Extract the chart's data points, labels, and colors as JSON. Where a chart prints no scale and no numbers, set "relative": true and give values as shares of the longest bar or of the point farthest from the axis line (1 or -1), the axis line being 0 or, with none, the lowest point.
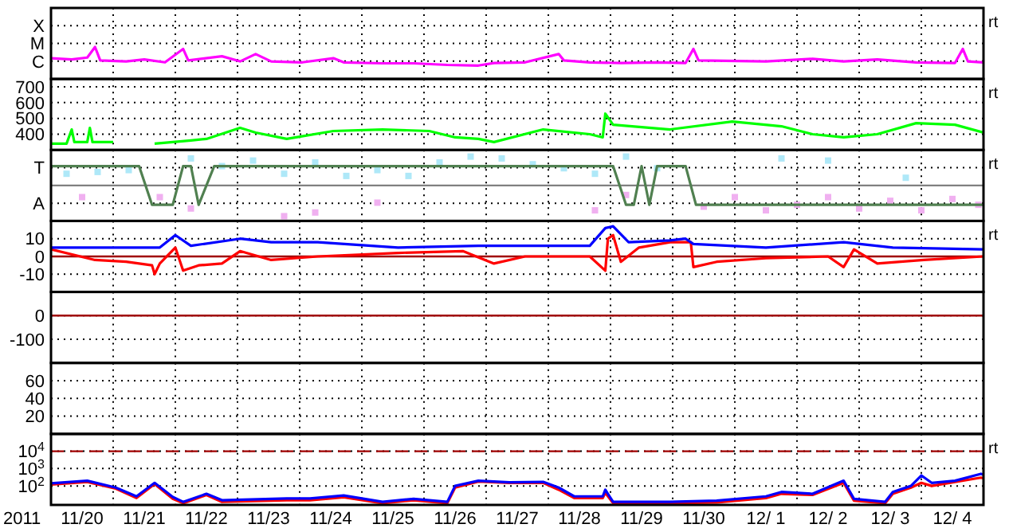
{
  "chart_data": [
    {
      "type": "line",
      "relative": true,
      "y_categories": [
        "X",
        "M",
        "C"
      ],
      "grid": true,
      "tick_labels": "y",
      "xlim": [
        "2011-11-20",
        "2011-12-05"
      ],
      "xticks": [
        {
          "value": "2011-11-21",
          "label": null
        },
        {
          "value": "2011-11-22",
          "label": null
        },
        {
          "value": "2011-11-23",
          "label": null
        },
        {
          "value": "2011-11-24",
          "label": null
        },
        {
          "value": "2011-11-25",
          "label": null
        },
        {
          "value": "2011-11-26",
          "label": null
        },
        {
          "value": "2011-11-27",
          "label": null
        },
        {
          "value": "2011-11-28",
          "label": null
        },
        {
          "value": "2011-11-29",
          "label": null
        },
        {
          "value": "2011-11-30",
          "label": null
        },
        {
          "value": "2011-12-01",
          "label": null
        },
        {
          "value": "2011-12-02",
          "label": null
        },
        {
          "value": "2011-12-03",
          "label": null
        },
        {
          "value": "2011-12-04",
          "label": null
        }
      ],
      "annotations": [
        "rt"
      ],
      "series": [
        {
          "color": "#ff00ff",
          "x": [
            "2011-11-20T00:00",
            "2011-11-20T08:00",
            "2011-11-20T14:00",
            "2011-11-20T17:00",
            "2011-11-20T19:00",
            "2011-11-21T05:00",
            "2011-11-21T12:00",
            "2011-11-21T20:00",
            "2011-11-22T03:00",
            "2011-11-22T05:00",
            "2011-11-22T18:00",
            "2011-11-23T01:00",
            "2011-11-23T07:00",
            "2011-11-23T13:00",
            "2011-11-24T01:00",
            "2011-11-24T13:00",
            "2011-11-24T17:00",
            "2011-11-25T08:00",
            "2011-11-25T20:00",
            "2011-11-26T09:00",
            "2011-11-26T21:00",
            "2011-11-27T03:00",
            "2011-11-27T15:00",
            "2011-11-28T04:00",
            "2011-11-28T06:00",
            "2011-11-28T16:00",
            "2011-11-29T04:00",
            "2011-11-29T18:00",
            "2011-11-30T05:00",
            "2011-11-30T08:00",
            "2011-11-30T10:00",
            "2011-12-01T12:00",
            "2011-12-02T06:00",
            "2011-12-02T18:00",
            "2011-12-03T07:00",
            "2011-12-03T22:00",
            "2011-12-04T13:00",
            "2011-12-04T16:00",
            "2011-12-04T18:00",
            "2011-12-05T00:00"
          ],
          "values": [
            0.65,
            0.61,
            0.67,
            1,
            0.58,
            0.55,
            0.61,
            0.52,
            0.94,
            0.58,
            0.71,
            0.55,
            0.78,
            0.55,
            0.52,
            0.65,
            0.52,
            0.49,
            0.49,
            0.44,
            0.42,
            0.5,
            0.52,
            0.78,
            0.58,
            0.52,
            0.5,
            0.52,
            0.5,
            0.94,
            0.58,
            0.55,
            0.63,
            0.55,
            0.61,
            0.52,
            0.5,
            0.94,
            0.55,
            0.52
          ]
        }
      ]
    },
    {
      "type": "line",
      "grid": true,
      "tick_labels": "y",
      "xlim": [
        "2011-11-20",
        "2011-12-05"
      ],
      "xticks": [
        {
          "value": "2011-11-21",
          "label": null
        },
        {
          "value": "2011-11-22",
          "label": null
        },
        {
          "value": "2011-11-23",
          "label": null
        },
        {
          "value": "2011-11-24",
          "label": null
        },
        {
          "value": "2011-11-25",
          "label": null
        },
        {
          "value": "2011-11-26",
          "label": null
        },
        {
          "value": "2011-11-27",
          "label": null
        },
        {
          "value": "2011-11-28",
          "label": null
        },
        {
          "value": "2011-11-29",
          "label": null
        },
        {
          "value": "2011-11-30",
          "label": null
        },
        {
          "value": "2011-12-01",
          "label": null
        },
        {
          "value": "2011-12-02",
          "label": null
        },
        {
          "value": "2011-12-03",
          "label": null
        },
        {
          "value": "2011-12-04",
          "label": null
        }
      ],
      "ylim": [
        300,
        750
      ],
      "yticks": [
        400,
        500,
        600,
        700
      ],
      "annotations": [
        "rt"
      ],
      "series": [
        {
          "color": "#00ff00",
          "x": [
            "2011-11-20T00:00",
            "2011-11-20T06:00",
            "2011-11-20T08:00",
            "2011-11-20T09:00",
            "2011-11-20T14:00",
            "2011-11-20T15:00",
            "2011-11-20T16:00",
            "2011-11-21T00:00",
            "2011-11-21T08:00",
            "2011-11-21T16:00",
            "2011-11-22T06:00",
            "2011-11-22T12:00",
            "2011-11-23T01:00",
            "2011-11-23T07:00",
            "2011-11-23T19:00",
            "2011-11-24T13:00",
            "2011-11-25T08:00",
            "2011-11-26T02:00",
            "2011-11-26T12:00",
            "2011-11-26T21:00",
            "2011-11-27T03:00",
            "2011-11-27T22:00",
            "2011-11-28T16:00",
            "2011-11-28T21:00",
            "2011-11-28T22:00",
            "2011-11-29T01:00",
            "2011-11-29T23:00",
            "2011-11-30T23:00",
            "2011-12-01T18:00",
            "2011-12-02T06:00",
            "2011-12-02T18:00",
            "2011-12-03T07:00",
            "2011-12-03T22:00",
            "2011-12-04T13:00",
            "2011-12-05T00:00"
          ],
          "values": [
            340,
            340,
            430,
            350,
            350,
            440,
            350,
            350,
            null,
            340,
            360,
            370,
            440,
            410,
            370,
            420,
            430,
            420,
            380,
            370,
            350,
            430,
            400,
            380,
            530,
            460,
            430,
            480,
            450,
            400,
            380,
            400,
            470,
            460,
            410
          ]
        }
      ]
    },
    {
      "type": "line",
      "grid": true,
      "tick_labels": "y",
      "xlim": [
        "2011-11-20",
        "2011-12-05"
      ],
      "xticks": [
        {
          "value": "2011-11-21",
          "label": null
        },
        {
          "value": "2011-11-22",
          "label": null
        },
        {
          "value": "2011-11-23",
          "label": null
        },
        {
          "value": "2011-11-24",
          "label": null
        },
        {
          "value": "2011-11-25",
          "label": null
        },
        {
          "value": "2011-11-26",
          "label": null
        },
        {
          "value": "2011-11-27",
          "label": null
        },
        {
          "value": "2011-11-28",
          "label": null
        },
        {
          "value": "2011-11-29",
          "label": null
        },
        {
          "value": "2011-11-30",
          "label": null
        },
        {
          "value": "2011-12-01",
          "label": null
        },
        {
          "value": "2011-12-02",
          "label": null
        },
        {
          "value": "2011-12-03",
          "label": null
        },
        {
          "value": "2011-12-04",
          "label": null
        }
      ],
      "relative": true,
      "y_categories": [
        "T",
        "A"
      ],
      "annotations": [
        "rt"
      ],
      "ref_lines": [
        {
          "axis": "y",
          "value": 0,
          "color": "#808080"
        }
      ],
      "series": [
        {
          "type": "scatter",
          "marker": "square",
          "color": "#aee8f8",
          "x": [
            "2011-11-20T06:00",
            "2011-11-20T18:00",
            "2011-11-21T06:00",
            "2011-11-22T06:00",
            "2011-11-22T18:00",
            "2011-11-23T06:00",
            "2011-11-23T18:00",
            "2011-11-24T06:00",
            "2011-11-24T18:00",
            "2011-11-25T06:00",
            "2011-11-25T18:00",
            "2011-11-26T06:00",
            "2011-11-26T18:00",
            "2011-11-27T06:00",
            "2011-11-27T18:00",
            "2011-11-28T06:00",
            "2011-11-28T18:00",
            "2011-11-29T06:00",
            "2011-11-29T18:00",
            "2011-12-01T18:00",
            "2011-12-02T12:00",
            "2011-12-03T18:00"
          ],
          "values": [
            0.38,
            0.44,
            0.5,
            0.88,
            0.63,
            0.81,
            0.38,
            0.75,
            0.31,
            0.5,
            0.31,
            0.75,
            0.94,
            0.88,
            0.69,
            0.56,
            0.38,
            0.94,
            0.56,
            0.88,
            0.81,
            0.25
          ]
        },
        {
          "type": "scatter",
          "marker": "square",
          "color": "#f0b0f0",
          "x": [
            "2011-11-20T12:00",
            "2011-11-21T18:00",
            "2011-11-22T06:00",
            "2011-11-23T18:00",
            "2011-11-24T06:00",
            "2011-11-25T06:00",
            "2011-11-28T18:00",
            "2011-11-29T06:00",
            "2011-11-30T12:00",
            "2011-12-01T00:00",
            "2011-12-01T12:00",
            "2011-12-02T00:00",
            "2011-12-02T12:00",
            "2011-12-03T00:00",
            "2011-12-03T12:00",
            "2011-12-04T00:00",
            "2011-12-04T12:00",
            "2011-12-04T22:00"
          ],
          "values": [
            -0.38,
            -0.38,
            -0.75,
            -1,
            -0.88,
            -0.56,
            -0.81,
            -0.31,
            -0.69,
            -0.38,
            -0.81,
            -0.63,
            -0.38,
            -0.75,
            -0.5,
            -0.81,
            -0.44,
            -0.63
          ]
        },
        {
          "type": "line",
          "color": "#508050",
          "x": [
            "2011-11-20T00:00",
            "2011-11-21T10:00",
            "2011-11-21T15:00",
            "2011-11-21T23:00",
            "2011-11-22T03:00",
            "2011-11-22T06:00",
            "2011-11-22T09:00",
            "2011-11-22T15:00",
            "2011-11-29T01:00",
            "2011-11-29T06:00",
            "2011-11-29T09:00",
            "2011-11-29T12:00",
            "2011-11-29T15:00",
            "2011-11-29T18:00",
            "2011-11-30T05:00",
            "2011-11-30T09:00",
            "2011-12-05T00:00"
          ],
          "values": [
            0.63,
            0.63,
            -0.63,
            -0.63,
            0.63,
            0.63,
            -0.63,
            0.63,
            0.63,
            -0.63,
            -0.63,
            0.63,
            -0.63,
            0.63,
            0.63,
            -0.63,
            -0.63
          ]
        }
      ]
    },
    {
      "type": "line",
      "grid": true,
      "tick_labels": "y",
      "xlim": [
        "2011-11-20",
        "2011-12-05"
      ],
      "xticks": [
        {
          "value": "2011-11-21",
          "label": null
        },
        {
          "value": "2011-11-22",
          "label": null
        },
        {
          "value": "2011-11-23",
          "label": null
        },
        {
          "value": "2011-11-24",
          "label": null
        },
        {
          "value": "2011-11-25",
          "label": null
        },
        {
          "value": "2011-11-26",
          "label": null
        },
        {
          "value": "2011-11-27",
          "label": null
        },
        {
          "value": "2011-11-28",
          "label": null
        },
        {
          "value": "2011-11-29",
          "label": null
        },
        {
          "value": "2011-11-30",
          "label": null
        },
        {
          "value": "2011-12-01",
          "label": null
        },
        {
          "value": "2011-12-02",
          "label": null
        },
        {
          "value": "2011-12-03",
          "label": null
        },
        {
          "value": "2011-12-04",
          "label": null
        }
      ],
      "ylim": [
        -20,
        20
      ],
      "yticks": [
        -10,
        0,
        10
      ],
      "annotations": [
        "rt"
      ],
      "ref_lines": [
        {
          "axis": "y",
          "value": 0,
          "color": "#a00000"
        }
      ],
      "series": [
        {
          "color": "#ff0000",
          "x": [
            "2011-11-20T00:00",
            "2011-11-20T17:00",
            "2011-11-21T05:00",
            "2011-11-21T15:00",
            "2011-11-21T16:00",
            "2011-11-21T18:00",
            "2011-11-22T00:00",
            "2011-11-22T03:00",
            "2011-11-22T09:00",
            "2011-11-22T18:00",
            "2011-11-23T01:00",
            "2011-11-23T13:00",
            "2011-11-24T07:00",
            "2011-11-25T14:00",
            "2011-11-26T15:00",
            "2011-11-27T03:00",
            "2011-11-27T15:00",
            "2011-11-28T16:00",
            "2011-11-28T22:00",
            "2011-11-28T23:00",
            "2011-11-29T01:00",
            "2011-11-29T04:00",
            "2011-11-29T11:00",
            "2011-11-29T23:00",
            "2011-11-30T07:00",
            "2011-11-30T08:00",
            "2011-11-30T17:00",
            "2011-12-01T12:00",
            "2011-12-02T12:00",
            "2011-12-02T18:00",
            "2011-12-02T22:00",
            "2011-12-03T07:00",
            "2011-12-04T01:00",
            "2011-12-05T00:00"
          ],
          "values": [
            4,
            -2,
            -3,
            -5,
            -10,
            -4,
            5,
            -8,
            -5,
            -4,
            3,
            -2,
            0,
            2,
            3,
            -4,
            0,
            0,
            -8,
            10,
            12,
            -3,
            5,
            8,
            8,
            -6,
            -3,
            -1,
            0,
            -6,
            4,
            -4,
            -2,
            0
          ]
        },
        {
          "color": "#0000ff",
          "x": [
            "2011-11-20T00:00",
            "2011-11-21T00:00",
            "2011-11-21T18:00",
            "2011-11-22T00:00",
            "2011-11-22T06:00",
            "2011-11-23T01:00",
            "2011-11-23T13:00",
            "2011-11-24T07:00",
            "2011-11-25T14:00",
            "2011-11-26T21:00",
            "2011-11-27T03:00",
            "2011-11-28T16:00",
            "2011-11-28T22:00",
            "2011-11-29T01:00",
            "2011-11-29T07:00",
            "2011-11-29T23:00",
            "2011-11-30T05:00",
            "2011-11-30T08:00",
            "2011-12-01T12:00",
            "2011-12-02T18:00",
            "2011-12-03T13:00",
            "2011-12-05T00:00"
          ],
          "values": [
            5,
            5,
            5,
            12,
            6,
            10,
            8,
            8,
            5,
            6,
            6,
            6,
            16,
            17,
            8,
            9,
            10,
            7,
            5,
            8,
            5,
            4
          ]
        }
      ]
    },
    {
      "type": "line",
      "grid": true,
      "tick_labels": "y",
      "xlim": [
        "2011-11-20",
        "2011-12-05"
      ],
      "xticks": [
        {
          "value": "2011-11-21",
          "label": null
        },
        {
          "value": "2011-11-22",
          "label": null
        },
        {
          "value": "2011-11-23",
          "label": null
        },
        {
          "value": "2011-11-24",
          "label": null
        },
        {
          "value": "2011-11-25",
          "label": null
        },
        {
          "value": "2011-11-26",
          "label": null
        },
        {
          "value": "2011-11-27",
          "label": null
        },
        {
          "value": "2011-11-28",
          "label": null
        },
        {
          "value": "2011-11-29",
          "label": null
        },
        {
          "value": "2011-11-30",
          "label": null
        },
        {
          "value": "2011-12-01",
          "label": null
        },
        {
          "value": "2011-12-02",
          "label": null
        },
        {
          "value": "2011-12-03",
          "label": null
        },
        {
          "value": "2011-12-04",
          "label": null
        }
      ],
      "ylim": [
        -200,
        100
      ],
      "yticks": [
        -100,
        0
      ],
      "ref_lines": [
        {
          "axis": "y",
          "value": 0,
          "color": "#a00000"
        }
      ]
    },
    {
      "type": "line",
      "grid": true,
      "tick_labels": "y",
      "xlim": [
        "2011-11-20",
        "2011-12-05"
      ],
      "xticks": [
        {
          "value": "2011-11-21",
          "label": null
        },
        {
          "value": "2011-11-22",
          "label": null
        },
        {
          "value": "2011-11-23",
          "label": null
        },
        {
          "value": "2011-11-24",
          "label": null
        },
        {
          "value": "2011-11-25",
          "label": null
        },
        {
          "value": "2011-11-26",
          "label": null
        },
        {
          "value": "2011-11-27",
          "label": null
        },
        {
          "value": "2011-11-28",
          "label": null
        },
        {
          "value": "2011-11-29",
          "label": null
        },
        {
          "value": "2011-11-30",
          "label": null
        },
        {
          "value": "2011-12-01",
          "label": null
        },
        {
          "value": "2011-12-02",
          "label": null
        },
        {
          "value": "2011-12-03",
          "label": null
        },
        {
          "value": "2011-12-04",
          "label": null
        }
      ],
      "ylim": [
        0,
        80
      ],
      "yticks": [
        20,
        40,
        60
      ]
    },
    {
      "type": "line",
      "log": true,
      "grid": true,
      "xlabel": "2011",
      "xlim": [
        "2011-11-20",
        "2011-12-05"
      ],
      "xticks": [
        {
          "value": "2011-11-21",
          "label": null
        },
        {
          "value": "2011-11-22",
          "label": null
        },
        {
          "value": "2011-11-23",
          "label": null
        },
        {
          "value": "2011-11-24",
          "label": null
        },
        {
          "value": "2011-11-25",
          "label": null
        },
        {
          "value": "2011-11-26",
          "label": null
        },
        {
          "value": "2011-11-27",
          "label": null
        },
        {
          "value": "2011-11-28",
          "label": null
        },
        {
          "value": "2011-11-29",
          "label": null
        },
        {
          "value": "2011-11-30",
          "label": null
        },
        {
          "value": "2011-12-01",
          "label": null
        },
        {
          "value": "2011-12-02",
          "label": null
        },
        {
          "value": "2011-12-03",
          "label": null
        },
        {
          "value": "2011-12-04",
          "label": null
        },
        {
          "value": "2011-11-20T12:00",
          "label": "11/20"
        },
        {
          "value": "2011-11-21T12:00",
          "label": "11/21"
        },
        {
          "value": "2011-11-22T12:00",
          "label": "11/22"
        },
        {
          "value": "2011-11-23T12:00",
          "label": "11/23"
        },
        {
          "value": "2011-11-24T12:00",
          "label": "11/24"
        },
        {
          "value": "2011-11-25T12:00",
          "label": "11/25"
        },
        {
          "value": "2011-11-26T12:00",
          "label": "11/26"
        },
        {
          "value": "2011-11-27T12:00",
          "label": "11/27"
        },
        {
          "value": "2011-11-28T12:00",
          "label": "11/28"
        },
        {
          "value": "2011-11-29T12:00",
          "label": "11/29"
        },
        {
          "value": "2011-11-30T12:00",
          "label": "11/30"
        },
        {
          "value": "2011-12-01T12:00",
          "label": "12/ 1"
        },
        {
          "value": "2011-12-02T12:00",
          "label": "12/ 2"
        },
        {
          "value": "2011-12-03T12:00",
          "label": "12/ 3"
        },
        {
          "value": "2011-12-04T12:00",
          "label": "12/ 4"
        }
      ],
      "ylim": [
        8,
        100000
      ],
      "yticks": [
        {
          "value": 100,
          "label": "10$^{2}$"
        },
        {
          "value": 1000,
          "label": "10$^{3}$"
        },
        {
          "value": 10000,
          "label": "10$^{4}$"
        }
      ],
      "annotations": [
        "rt"
      ],
      "ref_lines": [
        {
          "axis": "y",
          "value": 10000,
          "color": "#a00000",
          "line_style": "dashed"
        }
      ],
      "series": [
        {
          "color": "#ff0000",
          "x": [
            "2011-11-20T00:00",
            "2011-11-20T14:00",
            "2011-11-21T01:00",
            "2011-11-21T09:00",
            "2011-11-21T16:00",
            "2011-11-21T23:00",
            "2011-11-22T03:00",
            "2011-11-22T12:00",
            "2011-11-22T18:00",
            "2011-11-23T19:00",
            "2011-11-24T04:00",
            "2011-11-24T17:00",
            "2011-11-25T08:00",
            "2011-11-25T20:00",
            "2011-11-26T09:00",
            "2011-11-26T12:00",
            "2011-11-26T21:00",
            "2011-11-27T09:00",
            "2011-11-27T22:00",
            "2011-11-28T04:00",
            "2011-11-28T10:00",
            "2011-11-28T21:00",
            "2011-11-28T22:00",
            "2011-11-29T01:00",
            "2011-11-29T23:00",
            "2011-11-30T17:00",
            "2011-12-01T12:00",
            "2011-12-01T18:00",
            "2011-12-02T06:00",
            "2011-12-02T18:00",
            "2011-12-02T22:00",
            "2011-12-03T10:00",
            "2011-12-03T13:00",
            "2011-12-03T20:00",
            "2011-12-04T00:00",
            "2011-12-04T04:00",
            "2011-12-04T13:00",
            "2011-12-04T23:00",
            "2011-12-05T00:00"
          ],
          "values": [
            120,
            170,
            70,
            20,
            130,
            18,
            10,
            30,
            12,
            15,
            15,
            22,
            10,
            15,
            10,
            80,
            180,
            150,
            150,
            60,
            20,
            20,
            40,
            10,
            10,
            11,
            20,
            35,
            30,
            150,
            14,
            10,
            35,
            80,
            150,
            100,
            170,
            300,
            280
          ]
        },
        {
          "color": "#0000ff",
          "x": [
            "2011-11-20T00:00",
            "2011-11-20T14:00",
            "2011-11-21T01:00",
            "2011-11-21T09:00",
            "2011-11-21T16:00",
            "2011-11-21T23:00",
            "2011-11-22T03:00",
            "2011-11-22T12:00",
            "2011-11-22T18:00",
            "2011-11-23T19:00",
            "2011-11-24T04:00",
            "2011-11-24T17:00",
            "2011-11-25T08:00",
            "2011-11-25T20:00",
            "2011-11-26T09:00",
            "2011-11-26T12:00",
            "2011-11-26T21:00",
            "2011-11-27T09:00",
            "2011-11-27T22:00",
            "2011-11-28T04:00",
            "2011-11-28T10:00",
            "2011-11-28T21:00",
            "2011-11-28T22:00",
            "2011-11-29T01:00",
            "2011-11-29T23:00",
            "2011-11-30T17:00",
            "2011-12-01T12:00",
            "2011-12-01T18:00",
            "2011-12-02T06:00",
            "2011-12-02T18:00",
            "2011-12-02T22:00",
            "2011-12-03T10:00",
            "2011-12-03T13:00",
            "2011-12-03T20:00",
            "2011-12-04T00:00",
            "2011-12-04T04:00",
            "2011-12-04T13:00",
            "2011-12-04T23:00",
            "2011-12-05T00:00"
          ],
          "values": [
            140,
            200,
            80,
            25,
            150,
            23,
            12,
            35,
            15,
            19,
            19,
            28,
            12,
            18,
            12,
            100,
            200,
            160,
            170,
            80,
            25,
            25,
            60,
            12,
            12,
            14,
            25,
            45,
            35,
            200,
            18,
            12,
            45,
            100,
            400,
            150,
            200,
            500,
            450
          ]
        }
      ]
    }
  ]
}
